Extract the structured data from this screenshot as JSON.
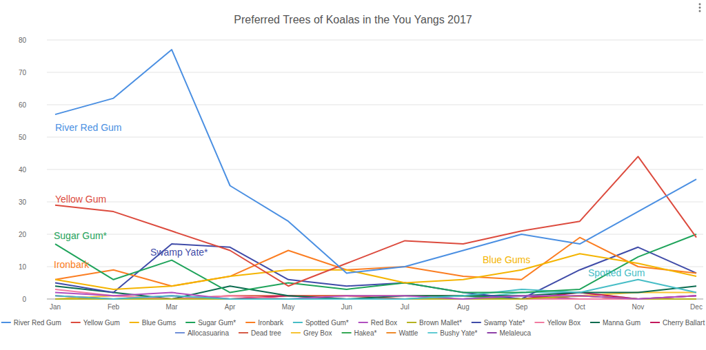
{
  "chart_data": {
    "type": "line",
    "title": "Preferred Trees of Koalas in the You Yangs 2017",
    "categories": [
      "Jan",
      "Feb",
      "Mar",
      "Apr",
      "May",
      "Jun",
      "Jul",
      "Aug",
      "Sep",
      "Oct",
      "Nov",
      "Dec"
    ],
    "ylim": [
      0,
      80
    ],
    "yticks": [
      0,
      10,
      20,
      30,
      40,
      50,
      60,
      70,
      80
    ],
    "grid": true,
    "legend": "bottom",
    "annotations": [
      "River Red Gum",
      "Yellow Gum",
      "Sugar Gum*",
      "Swamp Yate*",
      "Ironbark",
      "Blue Gums",
      "Spotted Gum"
    ],
    "series": [
      {
        "name": "River Red Gum",
        "color": "#4a8fe2",
        "values": [
          57,
          62,
          77,
          35,
          24,
          8,
          10,
          15,
          20,
          17,
          27,
          37
        ]
      },
      {
        "name": "Yellow Gum",
        "color": "#dc4a3d",
        "values": [
          29,
          27,
          21,
          15,
          4,
          11,
          18,
          17,
          21,
          24,
          44,
          19
        ]
      },
      {
        "name": "Blue Gums",
        "color": "#f4b400",
        "values": [
          6,
          3,
          4,
          7,
          9,
          9,
          5,
          6,
          9,
          14,
          11,
          7
        ]
      },
      {
        "name": "Sugar Gum*",
        "color": "#1ea35a",
        "values": [
          17,
          6,
          12,
          2,
          5,
          3,
          5,
          2,
          2,
          3,
          13,
          20
        ]
      },
      {
        "name": "Ironbark",
        "color": "#fb7d21",
        "values": [
          6,
          9,
          4,
          7,
          15,
          9,
          10,
          7,
          6,
          19,
          10,
          8
        ]
      },
      {
        "name": "Spotted Gum*",
        "color": "#46bdc6",
        "values": [
          1,
          0,
          1,
          0,
          0,
          0,
          0,
          1,
          3,
          2,
          6,
          2
        ]
      },
      {
        "name": "Red Box",
        "color": "#b04fc0",
        "values": [
          2,
          1,
          2,
          0,
          0,
          1,
          1,
          0,
          1,
          1,
          0,
          1
        ]
      },
      {
        "name": "Brown Mallet*",
        "color": "#b5b21f",
        "values": [
          0,
          0,
          0,
          0,
          0,
          0,
          0,
          0,
          0,
          1,
          0,
          0
        ]
      },
      {
        "name": "Swamp Yate*",
        "color": "#3f4ba8",
        "values": [
          5,
          2,
          17,
          16,
          6,
          4,
          5,
          2,
          0,
          9,
          16,
          8
        ]
      },
      {
        "name": "Yellow Box",
        "color": "#f27aa0",
        "values": [
          3,
          1,
          0,
          1,
          0,
          0,
          0,
          0,
          0,
          0,
          0,
          0
        ]
      },
      {
        "name": "Manna Gum",
        "color": "#0b6b4f",
        "values": [
          4,
          2,
          0,
          4,
          1,
          0,
          1,
          1,
          1,
          2,
          2,
          4
        ]
      },
      {
        "name": "Cherry Ballart",
        "color": "#c2185b",
        "values": [
          1,
          0,
          0,
          0,
          1,
          0,
          0,
          0,
          0,
          2,
          0,
          1
        ]
      },
      {
        "name": "Allocasuarina",
        "color": "#6f8fd8",
        "values": [
          0,
          0,
          0,
          0,
          0,
          0,
          0,
          0,
          0,
          0,
          0,
          0
        ]
      },
      {
        "name": "Dead tree",
        "color": "#d65a45",
        "values": [
          0,
          0,
          0,
          1,
          1,
          1,
          0,
          0,
          0,
          1,
          0,
          0
        ]
      },
      {
        "name": "Grey Box",
        "color": "#f7c331",
        "values": [
          0,
          1,
          0,
          0,
          0,
          0,
          0,
          0,
          0,
          1,
          2,
          2
        ]
      },
      {
        "name": "Hakea*",
        "color": "#34a853",
        "values": [
          0,
          0,
          0,
          0,
          0,
          0,
          0,
          1,
          0,
          0,
          0,
          0
        ]
      },
      {
        "name": "Wattle",
        "color": "#ef8a2a",
        "values": [
          0,
          0,
          0,
          0,
          1,
          1,
          1,
          1,
          0,
          1,
          0,
          0
        ]
      },
      {
        "name": "Bushy Yate*",
        "color": "#5fcad3",
        "values": [
          0,
          0,
          0,
          0,
          0,
          0,
          0,
          0,
          2,
          2,
          0,
          0
        ]
      },
      {
        "name": "Melaleuca",
        "color": "#8e3fa8",
        "values": [
          0,
          0,
          1,
          0,
          0,
          0,
          0,
          0,
          1,
          0,
          0,
          1
        ]
      }
    ]
  }
}
